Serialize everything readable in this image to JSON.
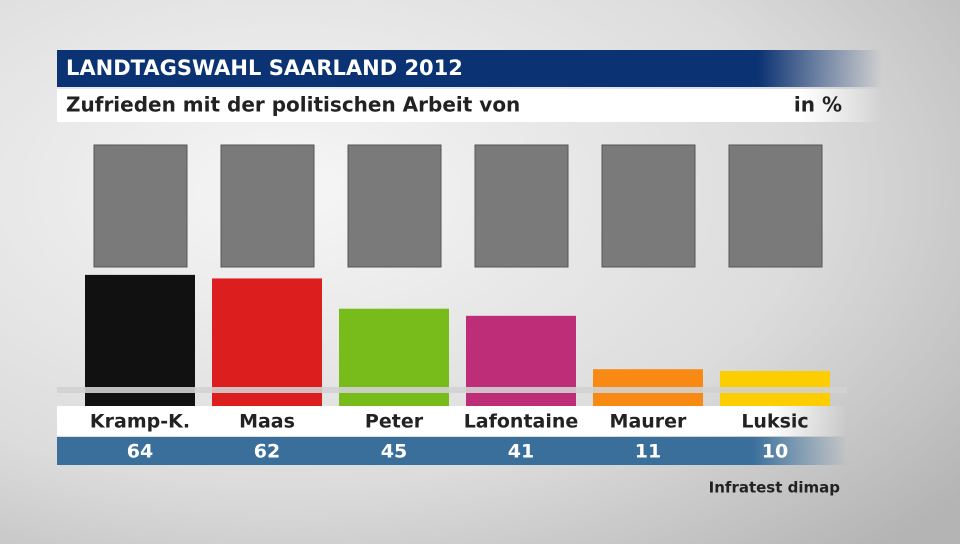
{
  "chart_data": {
    "type": "bar",
    "title": "LANDTAGSWAHL SAARLAND 2012",
    "subtitle": "Zufrieden mit der politischen Arbeit von",
    "unit": "in %",
    "source": "Infratest dimap",
    "categories": [
      "Kramp-K.",
      "Maas",
      "Peter",
      "Lafontaine",
      "Maurer",
      "Luksic"
    ],
    "values": [
      64,
      62,
      45,
      41,
      11,
      10
    ],
    "colors": [
      "#111111",
      "#dc1e1e",
      "#78bc1c",
      "#be2e78",
      "#f88a14",
      "#fcce00"
    ]
  }
}
